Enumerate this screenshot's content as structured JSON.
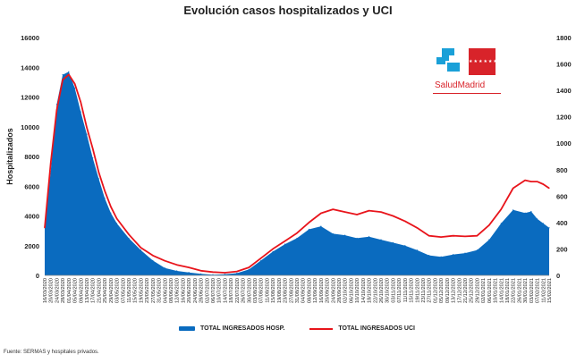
{
  "chart_data": {
    "type": "area+line",
    "title": "Evolución casos hospitalizados y UCI",
    "ylabel": "Hospitalizados",
    "y_left_ticks": [
      "0",
      "2000",
      "4000",
      "6000",
      "8000",
      "10000",
      "12000",
      "14000",
      "16000"
    ],
    "y_right_ticks": [
      "0",
      "200",
      "400",
      "600",
      "800",
      "1000",
      "1200",
      "1400",
      "1600",
      "1800"
    ],
    "ylim_left": [
      0,
      16000
    ],
    "ylim_right": [
      0,
      1800
    ],
    "x_tick_labels": [
      "16/03/2020",
      "20/03/2020",
      "24/03/2020",
      "28/03/2020",
      "01/04/2020",
      "05/04/2020",
      "09/04/2020",
      "13/04/2020",
      "17/04/2020",
      "21/04/2020",
      "25/04/2020",
      "29/04/2020",
      "03/05/2020",
      "07/05/2020",
      "11/05/2020",
      "15/05/2020",
      "19/05/2020",
      "23/05/2020",
      "27/05/2020",
      "31/05/2020",
      "04/06/2020",
      "08/06/2020",
      "12/06/2020",
      "16/06/2020",
      "20/06/2020",
      "24/06/2020",
      "28/06/2020",
      "02/07/2020",
      "06/07/2020",
      "10/07/2020",
      "14/07/2020",
      "18/07/2020",
      "22/07/2020",
      "26/07/2020",
      "30/07/2020",
      "03/08/2020",
      "07/08/2020",
      "11/08/2020",
      "15/08/2020",
      "19/08/2020",
      "23/08/2020",
      "27/08/2020",
      "31/08/2020",
      "04/09/2020",
      "08/09/2020",
      "12/09/2020",
      "16/09/2020",
      "20/09/2020",
      "24/09/2020",
      "28/09/2020",
      "02/10/2020",
      "06/10/2020",
      "10/10/2020",
      "14/10/2020",
      "18/10/2020",
      "22/10/2020",
      "26/10/2020",
      "30/10/2020",
      "03/11/2020",
      "07/11/2020",
      "11/11/2020",
      "15/11/2020",
      "19/11/2020",
      "23/11/2020",
      "27/11/2020",
      "01/12/2020",
      "05/12/2020",
      "09/12/2020",
      "13/12/2020",
      "17/12/2020",
      "21/12/2020",
      "25/12/2020",
      "29/12/2020",
      "02/01/2021",
      "06/01/2021",
      "10/01/2021",
      "14/01/2021",
      "18/01/2021",
      "22/01/2021",
      "26/01/2021",
      "30/01/2021",
      "03/02/2021",
      "07/02/2021",
      "11/02/2021",
      "15/02/2021"
    ],
    "series": [
      {
        "name": "TOTAL INGRESADOS HOSP.",
        "axis": "left",
        "color": "#0a6bbf",
        "x": [
          "2020-03-16",
          "2020-03-20",
          "2020-03-24",
          "2020-03-28",
          "2020-04-01",
          "2020-04-05",
          "2020-04-09",
          "2020-04-13",
          "2020-04-17",
          "2020-04-21",
          "2020-04-25",
          "2020-04-29",
          "2020-05-03",
          "2020-05-11",
          "2020-05-19",
          "2020-05-27",
          "2020-06-04",
          "2020-06-12",
          "2020-06-20",
          "2020-06-28",
          "2020-07-06",
          "2020-07-14",
          "2020-07-22",
          "2020-07-30",
          "2020-08-07",
          "2020-08-15",
          "2020-08-23",
          "2020-08-31",
          "2020-09-08",
          "2020-09-16",
          "2020-09-24",
          "2020-10-02",
          "2020-10-10",
          "2020-10-18",
          "2020-10-26",
          "2020-11-03",
          "2020-11-11",
          "2020-11-19",
          "2020-11-27",
          "2020-12-05",
          "2020-12-13",
          "2020-12-21",
          "2020-12-29",
          "2021-01-06",
          "2021-01-14",
          "2021-01-22",
          "2021-01-30",
          "2021-02-03",
          "2021-02-07",
          "2021-02-11",
          "2021-02-15"
        ],
        "values": [
          3300,
          7000,
          11500,
          13500,
          13700,
          12600,
          11000,
          9500,
          7900,
          6500,
          5200,
          4200,
          3500,
          2500,
          1700,
          1000,
          500,
          300,
          200,
          100,
          50,
          80,
          150,
          400,
          1000,
          1600,
          2100,
          2500,
          3100,
          3300,
          2800,
          2700,
          2500,
          2600,
          2400,
          2200,
          2000,
          1700,
          1350,
          1250,
          1400,
          1500,
          1700,
          2400,
          3500,
          4400,
          4200,
          4300,
          3800,
          3500,
          3200
        ]
      },
      {
        "name": "TOTAL INGRESADOS UCI",
        "axis": "right",
        "color": "#e8141b",
        "x": [
          "2020-03-16",
          "2020-03-20",
          "2020-03-24",
          "2020-03-28",
          "2020-04-01",
          "2020-04-05",
          "2020-04-09",
          "2020-04-13",
          "2020-04-17",
          "2020-04-21",
          "2020-04-25",
          "2020-04-29",
          "2020-05-03",
          "2020-05-11",
          "2020-05-19",
          "2020-05-27",
          "2020-06-04",
          "2020-06-12",
          "2020-06-20",
          "2020-06-28",
          "2020-07-06",
          "2020-07-14",
          "2020-07-22",
          "2020-07-30",
          "2020-08-07",
          "2020-08-15",
          "2020-08-23",
          "2020-08-31",
          "2020-09-08",
          "2020-09-16",
          "2020-09-24",
          "2020-10-02",
          "2020-10-10",
          "2020-10-18",
          "2020-10-26",
          "2020-11-03",
          "2020-11-11",
          "2020-11-19",
          "2020-11-27",
          "2020-12-05",
          "2020-12-13",
          "2020-12-21",
          "2020-12-29",
          "2021-01-06",
          "2021-01-14",
          "2021-01-22",
          "2021-01-30",
          "2021-02-03",
          "2021-02-07",
          "2021-02-11",
          "2021-02-15"
        ],
        "values": [
          360,
          850,
          1250,
          1480,
          1520,
          1450,
          1310,
          1120,
          960,
          780,
          640,
          520,
          430,
          310,
          210,
          150,
          110,
          80,
          60,
          35,
          25,
          20,
          30,
          60,
          130,
          200,
          260,
          320,
          400,
          470,
          500,
          480,
          460,
          490,
          480,
          450,
          410,
          360,
          300,
          290,
          300,
          295,
          300,
          380,
          500,
          660,
          720,
          710,
          710,
          690,
          660
        ]
      }
    ],
    "legend_position": "bottom",
    "grid": false
  },
  "logo": {
    "text": "SaludMadrid",
    "stars": "★★★★★★★"
  },
  "source": "Fuente: SERMAS y hospitales privados."
}
